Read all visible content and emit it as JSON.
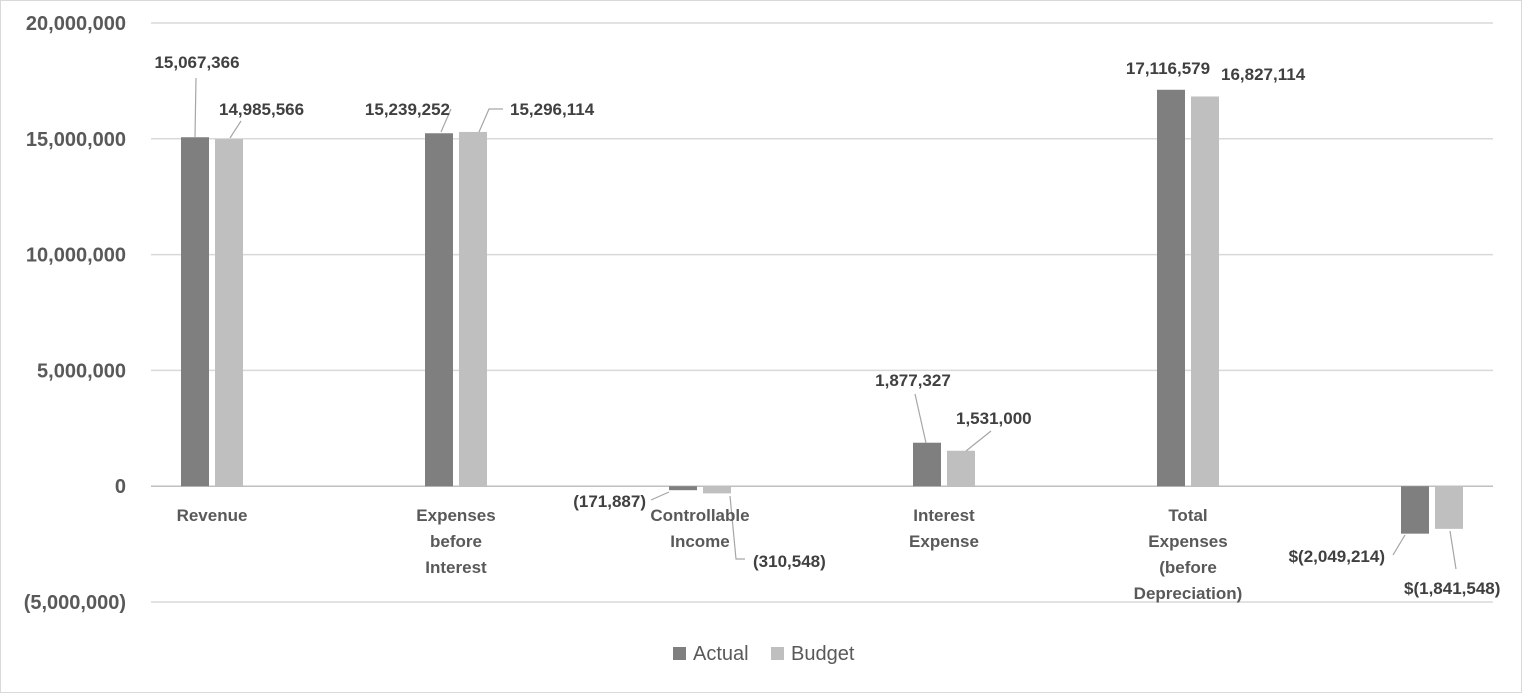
{
  "chart_data": {
    "type": "bar",
    "title": "",
    "xlabel": "",
    "ylabel": "",
    "ylim": [
      -5000000,
      20000000
    ],
    "y_ticks": [
      20000000,
      15000000,
      10000000,
      5000000,
      0,
      -5000000
    ],
    "y_tick_labels": [
      "20,000,000",
      "15,000,000",
      "10,000,000",
      "5,000,000",
      "0",
      "(5,000,000)"
    ],
    "grid": true,
    "legend_position": "bottom",
    "categories": [
      [
        "Revenue"
      ],
      [
        "Expenses",
        "before",
        "Interest"
      ],
      [
        "Controllable",
        "Income"
      ],
      [
        "Interest",
        "Expense"
      ],
      [
        "Total",
        "Expenses",
        "(before",
        "Depreciation)"
      ],
      []
    ],
    "series": [
      {
        "name": "Actual",
        "color": "#7f7f7f",
        "values": [
          15067366,
          15239252,
          -171887,
          1877327,
          17116579,
          -2049214
        ],
        "labels": [
          "15,067,366",
          "15,239,252",
          "(171,887)",
          "1,877,327",
          "17,116,579",
          "$(2,049,214)"
        ]
      },
      {
        "name": "Budget",
        "color": "#bfbfbf",
        "values": [
          14985566,
          15296114,
          -310548,
          1531000,
          16827114,
          -1841548
        ],
        "labels": [
          "14,985,566",
          "15,296,114",
          "(310,548)",
          "1,531,000",
          "16,827,114",
          "$(1,841,548)"
        ]
      }
    ]
  }
}
